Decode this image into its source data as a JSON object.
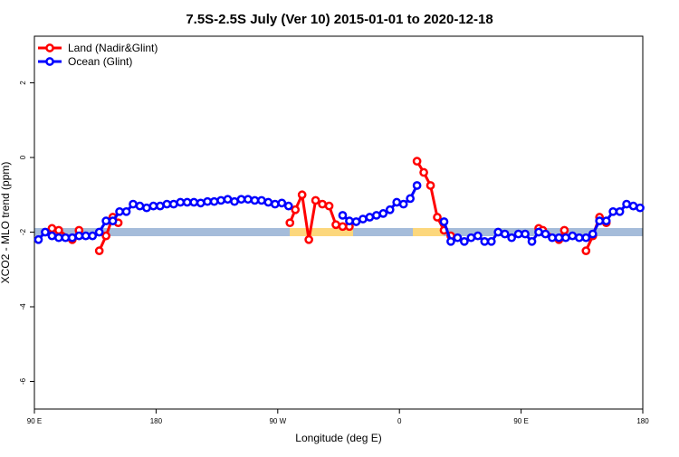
{
  "chart_data": {
    "type": "line",
    "title": "7.5S-2.5S July (Ver 10)   2015-01-01 to 2020-12-18",
    "x_label": "Longitude (deg E)",
    "y_label": "XCO2 - MLO trend (ppm)",
    "xlim": [
      90,
      540
    ],
    "ylim": [
      -6.74,
      3.25
    ],
    "xticks": [
      {
        "value": 90,
        "label": "90 E"
      },
      180,
      {
        "value": 270,
        "label": "90 W"
      },
      {
        "value": 360,
        "label": "0"
      },
      {
        "value": 450,
        "label": "90 E"
      },
      {
        "value": 540,
        "label": "180"
      }
    ],
    "yticks": [
      -6,
      -4,
      -2,
      0,
      2
    ],
    "legend": "top-left",
    "series": [
      {
        "name": "Land (Nadir&Glint)",
        "color": "#ff0000",
        "x": [
          103,
          108,
          118,
          123,
          128,
          138,
          143,
          148,
          152,
          200,
          279,
          283,
          288,
          293,
          298,
          303,
          308,
          313,
          318,
          323,
          340,
          373,
          378,
          383,
          388,
          393,
          398,
          450,
          463,
          466,
          478,
          482,
          490,
          498,
          503,
          508,
          513
        ],
        "values": [
          -1.9,
          -1.95,
          -2.2,
          -1.95,
          null,
          -2.5,
          -2.1,
          -1.6,
          -1.75,
          null,
          -1.75,
          -1.4,
          -1.0,
          -2.2,
          -1.15,
          -1.25,
          -1.3,
          -1.8,
          -1.85,
          -1.85,
          null,
          -0.1,
          -0.4,
          -0.75,
          -1.6,
          -1.95,
          -2.1,
          null,
          -1.9,
          -1.95,
          -2.2,
          -1.95,
          null,
          -2.5,
          -2.1,
          -1.6,
          -1.75
        ]
      },
      {
        "name": "Ocean (Glint)",
        "color": "#0000ff",
        "x": [
          93,
          98,
          103,
          108,
          113,
          118,
          123,
          128,
          133,
          138,
          143,
          148,
          153,
          158,
          163,
          168,
          173,
          178,
          183,
          188,
          193,
          198,
          203,
          208,
          213,
          218,
          223,
          228,
          233,
          238,
          243,
          248,
          253,
          258,
          263,
          268,
          273,
          278,
          283,
          288,
          293,
          298,
          303,
          308,
          313,
          318,
          323,
          328,
          333,
          338,
          343,
          348,
          353,
          358,
          363,
          368,
          373,
          378,
          383,
          388,
          393,
          398,
          403,
          408,
          413,
          418,
          423,
          428,
          433,
          438,
          443,
          448,
          453,
          458,
          463,
          468,
          473,
          478,
          483,
          488,
          493,
          498,
          503,
          508,
          513,
          518,
          523,
          528,
          533,
          538
        ],
        "values": [
          -2.2,
          -2.0,
          -2.1,
          -2.15,
          -2.15,
          -2.15,
          -2.1,
          -2.1,
          -2.1,
          -2.0,
          -1.7,
          -1.7,
          -1.45,
          -1.45,
          -1.25,
          -1.3,
          -1.35,
          -1.3,
          -1.3,
          -1.25,
          -1.25,
          -1.2,
          -1.2,
          -1.2,
          -1.22,
          -1.18,
          -1.18,
          -1.15,
          -1.12,
          -1.18,
          -1.12,
          -1.12,
          -1.15,
          -1.15,
          -1.2,
          -1.25,
          -1.22,
          -1.3,
          null,
          null,
          null,
          null,
          null,
          null,
          null,
          -1.55,
          -1.7,
          -1.72,
          -1.65,
          -1.6,
          -1.55,
          -1.5,
          -1.4,
          -1.2,
          -1.25,
          -1.1,
          -0.75,
          null,
          null,
          null,
          -1.72,
          -2.25,
          -2.15,
          -2.25,
          -2.15,
          -2.1,
          -2.25,
          -2.25,
          -2.0,
          -2.05,
          -2.15,
          -2.05,
          -2.05,
          -2.25,
          -2.0,
          -2.05,
          -2.15,
          -2.15,
          -2.15,
          -2.1,
          -2.15,
          -2.15,
          -2.05,
          -1.7,
          -1.7,
          -1.45,
          -1.45,
          -1.25,
          -1.3,
          -1.35
        ]
      }
    ]
  }
}
